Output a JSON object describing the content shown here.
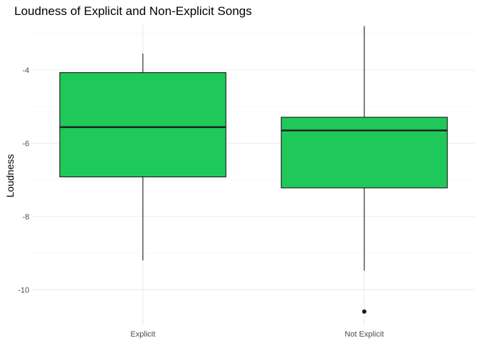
{
  "chart_data": {
    "type": "boxplot",
    "title": "Loudness of Explicit and Non-Explicit Songs",
    "xlabel": "",
    "ylabel": "Loudness",
    "categories": [
      "Explicit",
      "Not Explicit"
    ],
    "y_ticks": [
      -10,
      -8,
      -6,
      -4
    ],
    "ylim": [
      -10.97,
      -2.75
    ],
    "grid": true,
    "fill_color": "#1ec95a",
    "boxes": [
      {
        "category": "Explicit",
        "whisker_low": -9.2,
        "q1": -6.92,
        "median": -5.56,
        "q3": -4.07,
        "whisker_high": -3.55,
        "outliers": []
      },
      {
        "category": "Not Explicit",
        "whisker_low": -9.48,
        "q1": -7.22,
        "median": -5.65,
        "q3": -5.29,
        "whisker_high": -2.8,
        "outliers": [
          -10.6
        ]
      }
    ]
  }
}
